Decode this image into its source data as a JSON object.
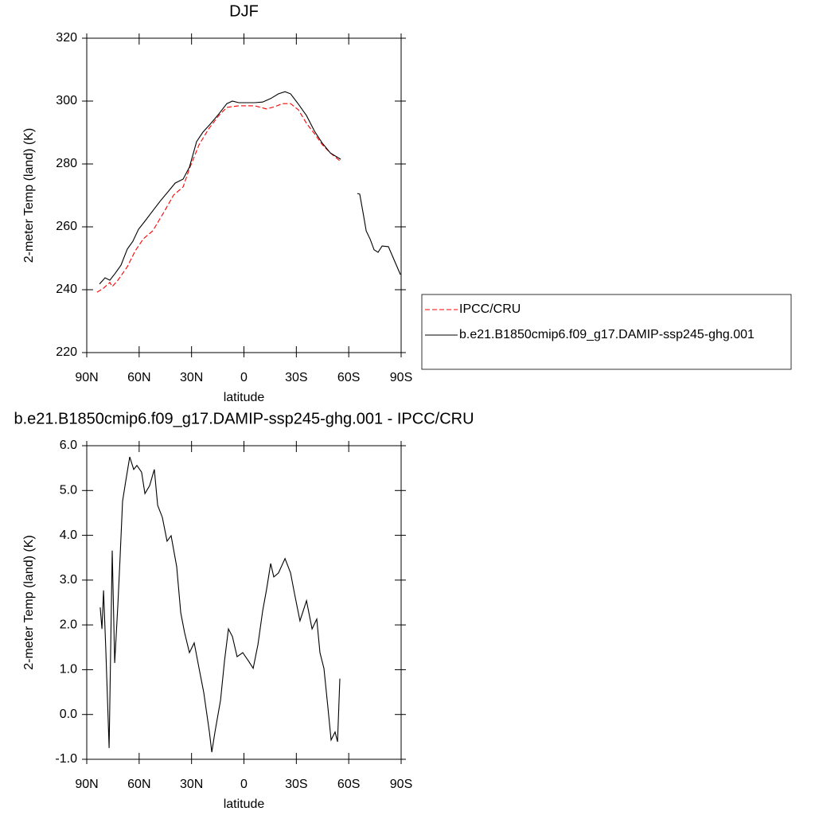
{
  "chart_data": [
    {
      "type": "line",
      "title": "DJF",
      "xlabel": "latitude",
      "ylabel": "2-meter Temp (land) (K)",
      "xlim": [
        90,
        -90
      ],
      "xticks": [
        {
          "value": 90,
          "label": "90N"
        },
        {
          "value": 60,
          "label": "60N"
        },
        {
          "value": 30,
          "label": "30N"
        },
        0,
        {
          "value": -30,
          "label": "30S"
        },
        {
          "value": -60,
          "label": "60S"
        },
        {
          "value": -90,
          "label": "90S"
        }
      ],
      "ylim": [
        220,
        320
      ],
      "yticks": [
        220,
        240,
        260,
        280,
        300,
        320
      ],
      "legend": "right",
      "series": [
        {
          "name": "IPCC/CRU",
          "color": "#ff0000",
          "dashed": true,
          "x": [
            84.1,
            80.4,
            76.8,
            75.4,
            72.2,
            66.8,
            62.2,
            57.6,
            52.2,
            46.2,
            40.3,
            34.8,
            31.2,
            25.7,
            20.3,
            14.4,
            9.8,
            3.0,
            -6.2,
            -13.0,
            -17.5,
            -22.1,
            -26.7,
            -31.2,
            -35.8,
            -40.4,
            -44.9,
            -49.5,
            -54.9
          ],
          "values": [
            239.2,
            240.5,
            242.3,
            241.0,
            243.0,
            247.3,
            252.4,
            256.2,
            258.7,
            264.3,
            270.1,
            272.7,
            278.5,
            286.1,
            291.1,
            295.4,
            298.0,
            298.5,
            298.5,
            297.5,
            298.2,
            299.2,
            299.2,
            297.2,
            292.9,
            289.6,
            286.1,
            283.5,
            281.0
          ]
        },
        {
          "name": "b.e21.B1850cmip6.f09_g17.DAMIP-ssp245-ghg.001",
          "color": "#000000",
          "dashed": false,
          "x": [
            82.7,
            79.5,
            76.8,
            73.6,
            70.4,
            66.8,
            63.6,
            60.4,
            56.7,
            52.2,
            47.6,
            43.1,
            39.4,
            34.8,
            31.2,
            27.1,
            23.5,
            18.9,
            14.4,
            9.8,
            6.6,
            3.0,
            -1.6,
            -6.2,
            -10.7,
            -15.3,
            -19.8,
            -23.5,
            -26.7,
            -31.2,
            -35.8,
            -40.4,
            -44.9,
            -49.5,
            -55.4,
            -60.0,
            -64.9,
            -66.3,
            -68.6,
            -70.0,
            -72.3,
            -74.5,
            -76.8,
            -79.1,
            -82.7,
            -85.9,
            -89.6
          ],
          "values": [
            241.8,
            243.8,
            243.0,
            245.3,
            247.8,
            252.9,
            255.4,
            259.2,
            261.8,
            265.1,
            268.4,
            271.4,
            273.9,
            275.2,
            279.0,
            287.1,
            290.1,
            292.9,
            295.9,
            299.2,
            300.0,
            299.5,
            299.5,
            299.5,
            299.7,
            300.8,
            302.3,
            303.0,
            302.3,
            299.0,
            295.4,
            290.4,
            286.6,
            283.5,
            281.5,
            null,
            270.6,
            270.4,
            263.3,
            258.7,
            256.0,
            252.7,
            251.9,
            253.9,
            253.7,
            249.6,
            244.8
          ]
        }
      ]
    },
    {
      "type": "line",
      "title": "b.e21.B1850cmip6.f09_g17.DAMIP-ssp245-ghg.001 - IPCC/CRU",
      "xlabel": "latitude",
      "ylabel": "2-meter Temp (land) (K)",
      "xlim": [
        90,
        -90
      ],
      "xticks": [
        {
          "value": 90,
          "label": "90N"
        },
        {
          "value": 60,
          "label": "60N"
        },
        {
          "value": 30,
          "label": "30N"
        },
        0,
        {
          "value": -30,
          "label": "30S"
        },
        {
          "value": -60,
          "label": "60S"
        },
        {
          "value": -90,
          "label": "90S"
        }
      ],
      "ylim": [
        -1,
        6
      ],
      "yticks": [
        {
          "value": -1,
          "label": "-1.0"
        },
        {
          "value": 0,
          "label": "0.0"
        },
        {
          "value": 1,
          "label": "1.0"
        },
        {
          "value": 2,
          "label": "2.0"
        },
        {
          "value": 3,
          "label": "3.0"
        },
        {
          "value": 4,
          "label": "4.0"
        },
        {
          "value": 5,
          "label": "5.0"
        },
        {
          "value": 6,
          "label": "6.0"
        }
      ],
      "series": [
        {
          "color": "#000000",
          "dashed": false,
          "x": [
            82.3,
            81.3,
            80.4,
            79.1,
            77.2,
            75.4,
            74.0,
            72.2,
            70.9,
            69.5,
            67.7,
            65.4,
            63.1,
            61.3,
            58.6,
            56.7,
            54.0,
            51.3,
            49.4,
            46.7,
            44.0,
            41.7,
            38.5,
            36.2,
            34.0,
            31.2,
            28.5,
            25.7,
            23.0,
            19.8,
            18.4,
            16.6,
            13.4,
            11.1,
            8.9,
            6.6,
            3.9,
            0.7,
            -2.5,
            -5.3,
            -8.0,
            -10.7,
            -13.0,
            -15.3,
            -17.1,
            -19.8,
            -23.5,
            -26.7,
            -28.9,
            -32.1,
            -35.8,
            -39.0,
            -41.7,
            -43.5,
            -45.8,
            -48.1,
            -49.9,
            -52.2,
            -53.6,
            -54.9
          ],
          "values": [
            2.39,
            1.91,
            2.77,
            1.47,
            -0.75,
            3.66,
            1.15,
            2.45,
            3.51,
            4.76,
            5.2,
            5.75,
            5.47,
            5.56,
            5.41,
            4.93,
            5.11,
            5.47,
            4.67,
            4.4,
            3.87,
            3.99,
            3.3,
            2.27,
            1.83,
            1.38,
            1.6,
            1.03,
            0.49,
            -0.39,
            -0.84,
            -0.39,
            0.32,
            1.2,
            1.91,
            1.74,
            1.29,
            1.38,
            1.2,
            1.03,
            1.56,
            2.31,
            2.8,
            3.37,
            3.07,
            3.16,
            3.48,
            3.16,
            2.71,
            2.09,
            2.54,
            1.91,
            2.13,
            1.38,
            1.03,
            0.14,
            -0.57,
            -0.39,
            -0.61,
            0.8
          ]
        }
      ]
    }
  ]
}
